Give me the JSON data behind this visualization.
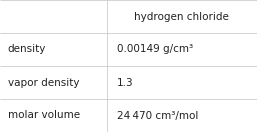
{
  "title_col": "hydrogen chloride",
  "rows": [
    {
      "label": "density",
      "value": "0.00149 g/cm³"
    },
    {
      "label": "vapor density",
      "value": "1.3"
    },
    {
      "label": "molar volume",
      "value": "24 470 cm³/mol"
    }
  ],
  "bg_color": "#ffffff",
  "grid_color": "#cccccc",
  "text_color": "#222222",
  "font_size": 7.5,
  "col_split": 0.415
}
